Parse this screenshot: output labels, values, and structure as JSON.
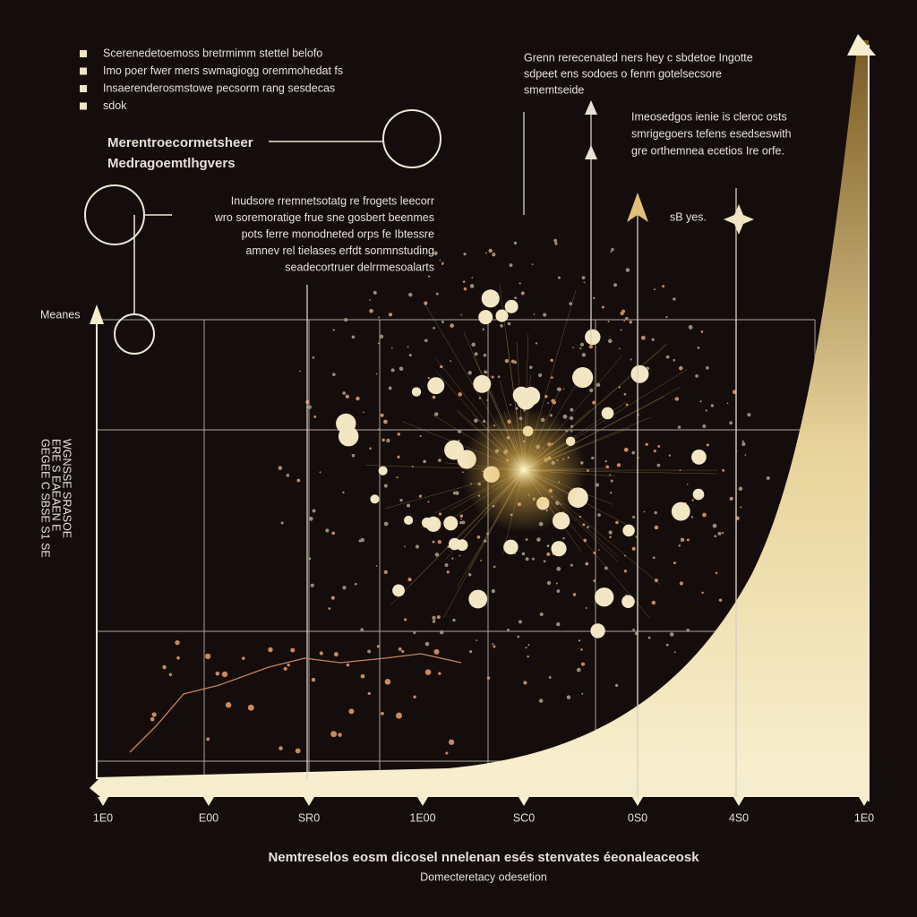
{
  "legend_notes": [
    "Scerenedetoemoss bretrmimm stettel belofo",
    "Imo poer fwer mers swmagiogg oremmohedat fs",
    "Insaerenderosmstowe pecsorm rang sesdecas",
    "sdok"
  ],
  "callout": {
    "title": "Merentroecormetsheer",
    "subtitle": "Medragoemtlhgvers"
  },
  "center_note": [
    "Inudsore rremnetsotatg re frogets leecorr",
    "wro soremoratige frue sne gosbert beenmes",
    "pots ferre monodneted orps fe Ibtessre",
    "amnev rel tielases erfdt sonmnstuding",
    "seadecortruer delrrmesoalarts"
  ],
  "top_note": [
    "Grenn rerecenated ners hey c sbdetoe Ingotte",
    "sdpeet ens sodoes o fenm gotelsecsore",
    "smemtseide"
  ],
  "right_note": [
    "Imeosedgos ienie is cleroc osts",
    "smrigegoers tefens esedseswith",
    "gre orthemnea ecetios Ire orfe."
  ],
  "star_label": "sB yes.",
  "y_axis_title": "Meanes",
  "y_side_text": [
    "GEGEE C SBSE S1 SE",
    "ERE S EAEAEN E",
    "WGNSSE SRASOE"
  ],
  "x_tick_labels": [
    "1E0",
    "E00",
    "SR0",
    "1E00",
    "SC0",
    "0S0",
    "4S0",
    "1E0"
  ],
  "footer": {
    "title": "Nemtreselos eosm dicosel nnelenan esés stenvates éeonaleaceosk",
    "subtitle": "Domecteretacy odesetion"
  }
}
